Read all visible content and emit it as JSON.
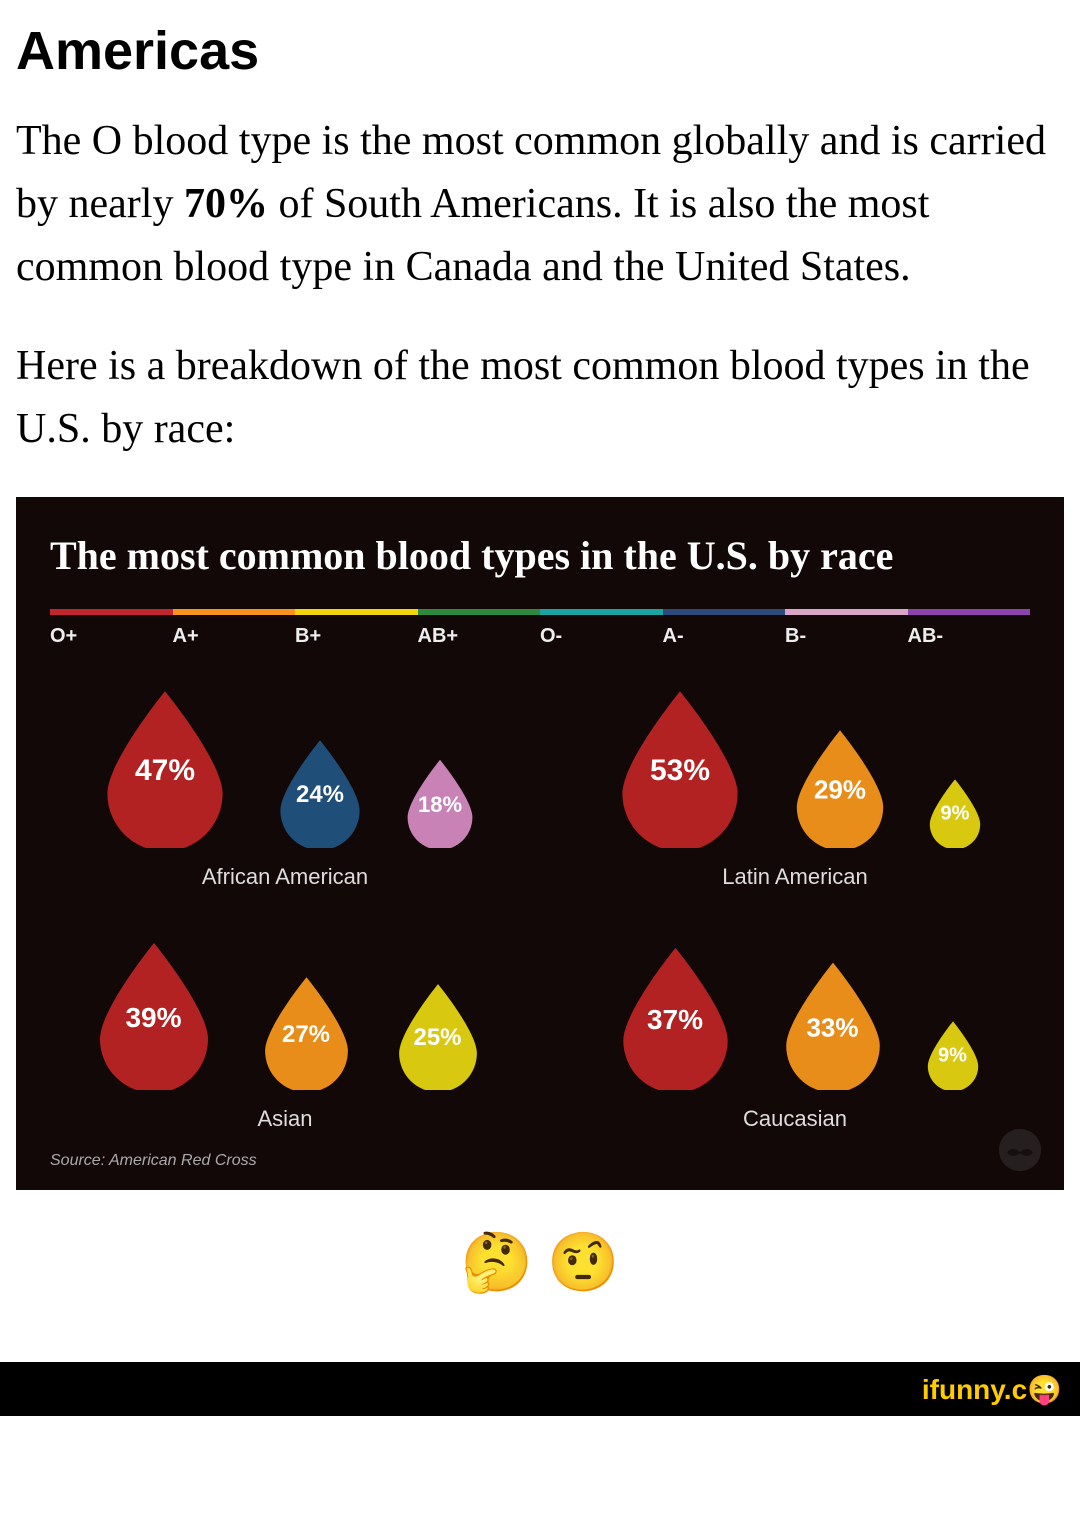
{
  "article": {
    "heading": "Americas",
    "paragraph1_a": "The O blood type is the most common globally and is carried by nearly ",
    "paragraph1_bold": "70%",
    "paragraph1_b": " of South Americans. It is also the most common blood type in Canada and the United States.",
    "paragraph2": "Here is a breakdown of the most common blood types in the U.S. by race:"
  },
  "infographic": {
    "title": "The most common blood types in the U.S. by race",
    "background": "#120808",
    "legend": {
      "segments": [
        {
          "label": "O+",
          "color": "#c1272d",
          "width": 12.5
        },
        {
          "label": "A+",
          "color": "#f7931e",
          "width": 12.5
        },
        {
          "label": "B+",
          "color": "#f3d50b",
          "width": 12.5
        },
        {
          "label": "AB+",
          "color": "#2e8b3d",
          "width": 12.5
        },
        {
          "label": "O-",
          "color": "#1aa6a0",
          "width": 12.5
        },
        {
          "label": "A-",
          "color": "#2c4a7a",
          "width": 12.5
        },
        {
          "label": "B-",
          "color": "#d9a6c7",
          "width": 12.5
        },
        {
          "label": "AB-",
          "color": "#8e44ad",
          "width": 12.5
        }
      ]
    },
    "groups": [
      {
        "name": "African American",
        "drops": [
          {
            "value": "47%",
            "color": "#b22222",
            "size": 160,
            "font": 30
          },
          {
            "value": "24%",
            "color": "#1f4e79",
            "size": 110,
            "font": 24
          },
          {
            "value": "18%",
            "color": "#c982b5",
            "size": 90,
            "font": 22
          }
        ]
      },
      {
        "name": "Latin American",
        "drops": [
          {
            "value": "53%",
            "color": "#b22222",
            "size": 160,
            "font": 30
          },
          {
            "value": "29%",
            "color": "#e88c1a",
            "size": 120,
            "font": 26
          },
          {
            "value": "9%",
            "color": "#d8c80f",
            "size": 70,
            "font": 20
          }
        ]
      },
      {
        "name": "Asian",
        "drops": [
          {
            "value": "39%",
            "color": "#b22222",
            "size": 150,
            "font": 28
          },
          {
            "value": "27%",
            "color": "#e88c1a",
            "size": 115,
            "font": 24
          },
          {
            "value": "25%",
            "color": "#d8c80f",
            "size": 108,
            "font": 24
          }
        ]
      },
      {
        "name": "Caucasian",
        "drops": [
          {
            "value": "37%",
            "color": "#b22222",
            "size": 145,
            "font": 28
          },
          {
            "value": "33%",
            "color": "#e88c1a",
            "size": 130,
            "font": 26
          },
          {
            "value": "9%",
            "color": "#d8c80f",
            "size": 70,
            "font": 20
          }
        ]
      }
    ],
    "source": "Source: American Red Cross"
  },
  "emojis": {
    "thinking": "🤔",
    "raised_brow": "🤨"
  },
  "footer": {
    "brand_a": "ifunny.",
    "brand_b": "c😜"
  }
}
